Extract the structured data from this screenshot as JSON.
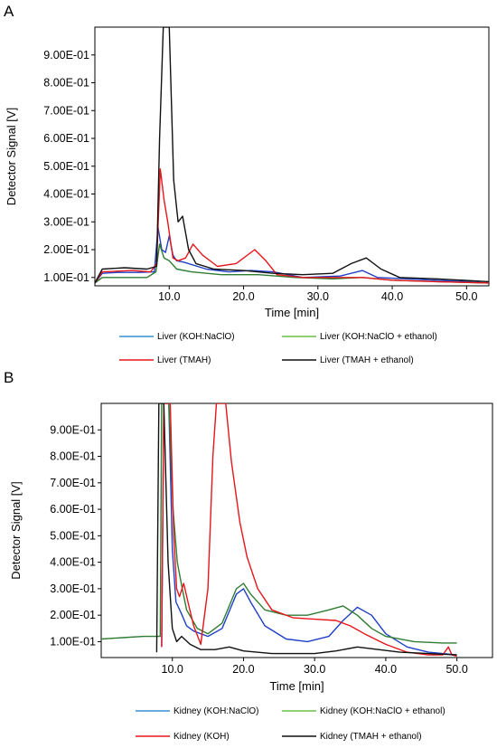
{
  "colors": {
    "blue": "#1f3fc7",
    "green": "#2e7d32",
    "red": "#e8151a",
    "black": "#111111",
    "legend_blue": "#3a8fd0",
    "legend_green": "#6cc04a"
  },
  "chart_data": [
    {
      "panel": "A",
      "type": "line",
      "xlabel": "Time [min]",
      "ylabel": "Detector Signal [V]",
      "xlim": [
        0,
        53
      ],
      "ylim": [
        0.07,
        1.0
      ],
      "x_ticks": [
        "10.0",
        "20.0",
        "30.0",
        "40.0",
        "50.0"
      ],
      "y_ticks": [
        "1.00E-01",
        "2.00E-01",
        "3.00E-01",
        "4.00E-01",
        "5.00E-01",
        "6.00E-01",
        "7.00E-01",
        "8.00E-01",
        "9.00E-01"
      ],
      "legend_placement": "below",
      "series": [
        {
          "name": "Liver (KOH:NaClO)",
          "color_key": "blue",
          "legend_color_key": "legend_blue",
          "points": [
            [
              0,
              0.08
            ],
            [
              1,
              0.115
            ],
            [
              3,
              0.118
            ],
            [
              6,
              0.118
            ],
            [
              8,
              0.12
            ],
            [
              8.5,
              0.28
            ],
            [
              9,
              0.2
            ],
            [
              9.5,
              0.19
            ],
            [
              10,
              0.25
            ],
            [
              10.5,
              0.18
            ],
            [
              11,
              0.16
            ],
            [
              12,
              0.155
            ],
            [
              15,
              0.13
            ],
            [
              18,
              0.12
            ],
            [
              21,
              0.125
            ],
            [
              24,
              0.12
            ],
            [
              28,
              0.1
            ],
            [
              33,
              0.105
            ],
            [
              36,
              0.125
            ],
            [
              38,
              0.1
            ],
            [
              42,
              0.095
            ],
            [
              50,
              0.085
            ],
            [
              53,
              0.08
            ]
          ]
        },
        {
          "name": "Liver (KOH:NaClO + ethanol)",
          "color_key": "green",
          "legend_color_key": "legend_green",
          "points": [
            [
              0,
              0.08
            ],
            [
              1,
              0.1
            ],
            [
              4,
              0.1
            ],
            [
              7,
              0.1
            ],
            [
              8.2,
              0.12
            ],
            [
              8.7,
              0.22
            ],
            [
              9.3,
              0.17
            ],
            [
              10,
              0.16
            ],
            [
              11,
              0.13
            ],
            [
              13,
              0.12
            ],
            [
              17,
              0.11
            ],
            [
              22,
              0.11
            ],
            [
              27,
              0.1
            ],
            [
              32,
              0.095
            ],
            [
              36,
              0.1
            ],
            [
              40,
              0.09
            ],
            [
              46,
              0.085
            ],
            [
              53,
              0.08
            ]
          ]
        },
        {
          "name": "Liver (TMAH)",
          "color_key": "red",
          "legend_color_key": "red",
          "points": [
            [
              0,
              0.08
            ],
            [
              1,
              0.12
            ],
            [
              5,
              0.125
            ],
            [
              7.5,
              0.12
            ],
            [
              8.3,
              0.15
            ],
            [
              8.8,
              0.49
            ],
            [
              9.3,
              0.38
            ],
            [
              9.8,
              0.3
            ],
            [
              10.5,
              0.17
            ],
            [
              11.2,
              0.16
            ],
            [
              12.2,
              0.17
            ],
            [
              13.2,
              0.22
            ],
            [
              14.5,
              0.18
            ],
            [
              16.5,
              0.14
            ],
            [
              19,
              0.15
            ],
            [
              21.5,
              0.2
            ],
            [
              23,
              0.16
            ],
            [
              24.5,
              0.11
            ],
            [
              28,
              0.1
            ],
            [
              33,
              0.1
            ],
            [
              36,
              0.1
            ],
            [
              40,
              0.09
            ],
            [
              46,
              0.085
            ],
            [
              53,
              0.08
            ]
          ]
        },
        {
          "name": "Liver (TMAH + ethanol)",
          "color_key": "black",
          "legend_color_key": "black",
          "points": [
            [
              0,
              0.08
            ],
            [
              1,
              0.13
            ],
            [
              4,
              0.135
            ],
            [
              7,
              0.13
            ],
            [
              8.3,
              0.14
            ],
            [
              8.7,
              0.6
            ],
            [
              9.2,
              1.0
            ],
            [
              10,
              1.0
            ],
            [
              10.6,
              0.45
            ],
            [
              11.2,
              0.3
            ],
            [
              11.8,
              0.32
            ],
            [
              12.6,
              0.2
            ],
            [
              13.6,
              0.15
            ],
            [
              16,
              0.13
            ],
            [
              20,
              0.125
            ],
            [
              24,
              0.115
            ],
            [
              28,
              0.11
            ],
            [
              32,
              0.115
            ],
            [
              34.5,
              0.15
            ],
            [
              36.5,
              0.17
            ],
            [
              38.5,
              0.13
            ],
            [
              41,
              0.1
            ],
            [
              46,
              0.095
            ],
            [
              53,
              0.085
            ]
          ]
        }
      ]
    },
    {
      "panel": "B",
      "type": "line",
      "xlabel": "Time [min]",
      "ylabel": "Detector Signal [V]",
      "xlim": [
        0,
        55
      ],
      "ylim": [
        0.04,
        1.0
      ],
      "x_ticks": [
        "10.0",
        "20.0",
        "30.0",
        "40.0",
        "50.0"
      ],
      "y_ticks": [
        "1.00E-01",
        "2.00E-01",
        "3.00E-01",
        "4.00E-01",
        "5.00E-01",
        "6.00E-01",
        "7.00E-01",
        "8.00E-01",
        "9.00E-01"
      ],
      "legend_placement": "below",
      "series": [
        {
          "name": "Kidney (KOH:NaClO)",
          "color_key": "blue",
          "legend_color_key": "legend_blue",
          "points": [
            [
              8.5,
              0.08
            ],
            [
              8.8,
              1.0
            ],
            [
              9.5,
              1.0
            ],
            [
              10,
              0.45
            ],
            [
              10.5,
              0.25
            ],
            [
              11.2,
              0.21
            ],
            [
              12,
              0.16
            ],
            [
              13,
              0.14
            ],
            [
              15,
              0.12
            ],
            [
              17,
              0.15
            ],
            [
              19,
              0.28
            ],
            [
              20,
              0.3
            ],
            [
              21,
              0.25
            ],
            [
              23,
              0.16
            ],
            [
              26,
              0.11
            ],
            [
              29,
              0.1
            ],
            [
              32,
              0.12
            ],
            [
              34,
              0.18
            ],
            [
              36,
              0.23
            ],
            [
              38,
              0.2
            ],
            [
              40,
              0.13
            ],
            [
              43,
              0.08
            ],
            [
              46,
              0.06
            ],
            [
              48,
              0.055
            ],
            [
              50,
              0.05
            ]
          ]
        },
        {
          "name": "Kidney (KOH:NaClO + ethanol)",
          "color_key": "green",
          "legend_color_key": "legend_green",
          "points": [
            [
              0,
              0.11
            ],
            [
              3,
              0.115
            ],
            [
              6,
              0.12
            ],
            [
              8.3,
              0.12
            ],
            [
              8.5,
              1.0
            ],
            [
              9.5,
              1.0
            ],
            [
              10.1,
              0.6
            ],
            [
              10.7,
              0.4
            ],
            [
              11.4,
              0.3
            ],
            [
              12,
              0.22
            ],
            [
              13.5,
              0.15
            ],
            [
              15,
              0.13
            ],
            [
              17,
              0.17
            ],
            [
              19,
              0.3
            ],
            [
              20,
              0.32
            ],
            [
              21,
              0.28
            ],
            [
              23,
              0.22
            ],
            [
              26,
              0.2
            ],
            [
              29,
              0.2
            ],
            [
              32,
              0.22
            ],
            [
              34,
              0.235
            ],
            [
              36,
              0.2
            ],
            [
              38,
              0.15
            ],
            [
              40,
              0.12
            ],
            [
              44,
              0.1
            ],
            [
              48,
              0.095
            ],
            [
              50,
              0.095
            ]
          ]
        },
        {
          "name": "Kidney (KOH)",
          "color_key": "red",
          "legend_color_key": "red",
          "points": [
            [
              8.5,
              0.08
            ],
            [
              8.8,
              1.0
            ],
            [
              9.7,
              1.0
            ],
            [
              10.2,
              0.5
            ],
            [
              10.6,
              0.3
            ],
            [
              11,
              0.27
            ],
            [
              11.6,
              0.32
            ],
            [
              12.2,
              0.25
            ],
            [
              13,
              0.16
            ],
            [
              14,
              0.09
            ],
            [
              15,
              0.3
            ],
            [
              15.7,
              0.8
            ],
            [
              16.2,
              1.0
            ],
            [
              17.5,
              1.0
            ],
            [
              18.3,
              0.78
            ],
            [
              19.5,
              0.55
            ],
            [
              20.5,
              0.42
            ],
            [
              22,
              0.3
            ],
            [
              24,
              0.22
            ],
            [
              27,
              0.19
            ],
            [
              30,
              0.185
            ],
            [
              33,
              0.18
            ],
            [
              35,
              0.16
            ],
            [
              37,
              0.13
            ],
            [
              40,
              0.09
            ],
            [
              43,
              0.06
            ],
            [
              46,
              0.05
            ],
            [
              48,
              0.05
            ],
            [
              48.8,
              0.08
            ],
            [
              49.3,
              0.05
            ],
            [
              50,
              0.045
            ]
          ]
        },
        {
          "name": "Kidney (TMAH + ethanol)",
          "color_key": "black",
          "legend_color_key": "black",
          "points": [
            [
              7.8,
              0.06
            ],
            [
              8.1,
              1.0
            ],
            [
              8.8,
              1.0
            ],
            [
              9.4,
              0.4
            ],
            [
              10,
              0.15
            ],
            [
              10.6,
              0.1
            ],
            [
              11.3,
              0.12
            ],
            [
              12.5,
              0.09
            ],
            [
              14,
              0.07
            ],
            [
              16,
              0.07
            ],
            [
              18,
              0.08
            ],
            [
              20,
              0.065
            ],
            [
              24,
              0.055
            ],
            [
              30,
              0.055
            ],
            [
              33,
              0.065
            ],
            [
              36,
              0.08
            ],
            [
              39,
              0.07
            ],
            [
              42,
              0.06
            ],
            [
              46,
              0.055
            ],
            [
              50,
              0.05
            ]
          ]
        }
      ]
    }
  ]
}
